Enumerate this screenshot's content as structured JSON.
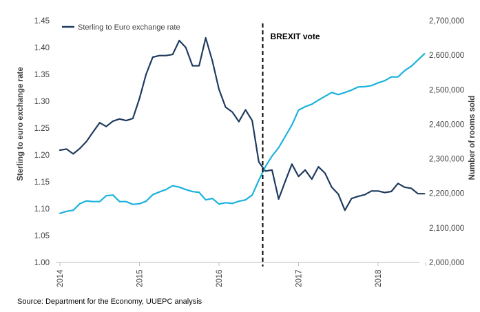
{
  "source_text": "Source: Department for the Economy, UUEPC analysis",
  "chart_data": {
    "type": "line",
    "left_axis_label": "Sterling to euro exchange rate",
    "right_axis_label": "Number of rooms sold",
    "left_ylim": [
      1.0,
      1.45
    ],
    "left_ticks": [
      "1.00",
      "1.05",
      "1.10",
      "1.15",
      "1.20",
      "1.25",
      "1.30",
      "1.35",
      "1.40",
      "1.45"
    ],
    "right_ylim": [
      2000000,
      2700000
    ],
    "right_ticks": [
      "2,000,000",
      "2,100,000",
      "2,200,000",
      "2,300,000",
      "2,400,000",
      "2,500,000",
      "2,600,000",
      "2,700,000"
    ],
    "x_tick_labels": [
      "2014",
      "2015",
      "2016",
      "2017",
      "2018"
    ],
    "x_start_label": "2014",
    "x_end_position": 4.6,
    "legend": {
      "label": "Sterling to Euro exchange rate",
      "placement": "top-left"
    },
    "annotation": {
      "label": "BREXIT vote",
      "x": 2.55
    },
    "series": [
      {
        "name": "Sterling to Euro exchange rate",
        "axis": "left",
        "color": "#1f3b5e",
        "x": [
          0.0,
          0.083,
          0.167,
          0.25,
          0.333,
          0.417,
          0.5,
          0.583,
          0.667,
          0.75,
          0.833,
          0.917,
          1.0,
          1.083,
          1.167,
          1.25,
          1.333,
          1.417,
          1.5,
          1.583,
          1.667,
          1.75,
          1.833,
          1.917,
          2.0,
          2.083,
          2.167,
          2.25,
          2.333,
          2.417,
          2.5,
          2.583,
          2.667,
          2.75,
          2.833,
          2.917,
          3.0,
          3.083,
          3.167,
          3.25,
          3.333,
          3.417,
          3.5,
          3.583,
          3.667,
          3.75,
          3.833,
          3.917,
          4.0,
          4.083,
          4.167,
          4.25,
          4.333,
          4.417,
          4.5,
          4.583
        ],
        "y": [
          1.209,
          1.211,
          1.202,
          1.212,
          1.225,
          1.243,
          1.26,
          1.253,
          1.263,
          1.267,
          1.264,
          1.268,
          1.305,
          1.35,
          1.382,
          1.385,
          1.385,
          1.387,
          1.413,
          1.4,
          1.366,
          1.366,
          1.418,
          1.375,
          1.322,
          1.289,
          1.28,
          1.262,
          1.284,
          1.264,
          1.187,
          1.17,
          1.172,
          1.118,
          1.151,
          1.183,
          1.16,
          1.172,
          1.155,
          1.178,
          1.166,
          1.14,
          1.127,
          1.097,
          1.119,
          1.123,
          1.126,
          1.133,
          1.133,
          1.13,
          1.132,
          1.147,
          1.14,
          1.138,
          1.128,
          1.128
        ]
      },
      {
        "name": "",
        "axis": "right",
        "color": "#1ab2dd",
        "x": [
          0.0,
          0.083,
          0.167,
          0.25,
          0.333,
          0.417,
          0.5,
          0.583,
          0.667,
          0.75,
          0.833,
          0.917,
          1.0,
          1.083,
          1.167,
          1.25,
          1.333,
          1.417,
          1.5,
          1.583,
          1.667,
          1.75,
          1.833,
          1.917,
          2.0,
          2.083,
          2.167,
          2.25,
          2.333,
          2.417,
          2.5,
          2.583,
          2.667,
          2.75,
          2.833,
          2.917,
          3.0,
          3.083,
          3.167,
          3.25,
          3.333,
          3.417,
          3.5,
          3.583,
          3.667,
          3.75,
          3.833,
          3.917,
          4.0,
          4.083,
          4.167,
          4.25,
          4.333,
          4.417,
          4.5,
          4.583
        ],
        "y": [
          2142000,
          2148000,
          2151000,
          2170000,
          2178000,
          2176000,
          2176000,
          2193000,
          2195000,
          2176000,
          2176000,
          2168000,
          2170000,
          2177000,
          2196000,
          2204000,
          2211000,
          2222000,
          2218000,
          2211000,
          2205000,
          2203000,
          2181000,
          2185000,
          2169000,
          2173000,
          2171000,
          2177000,
          2181000,
          2195000,
          2238000,
          2277000,
          2308000,
          2332000,
          2365000,
          2398000,
          2441000,
          2451000,
          2458000,
          2470000,
          2481000,
          2492000,
          2486000,
          2492000,
          2499000,
          2508000,
          2509000,
          2512000,
          2520000,
          2526000,
          2537000,
          2537000,
          2555000,
          2568000,
          2586000,
          2604000
        ]
      }
    ]
  }
}
